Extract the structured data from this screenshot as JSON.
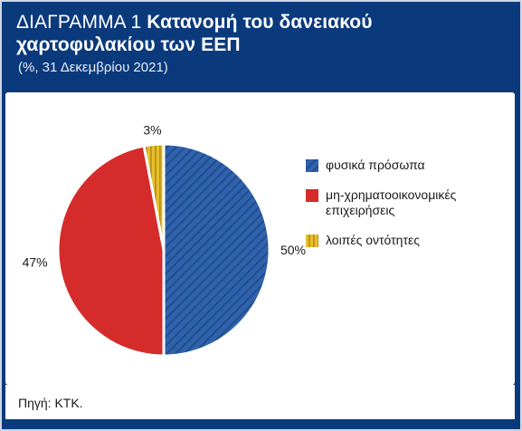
{
  "header": {
    "title_label": "ΔΙΑΓΡΑΜΜΑ 1",
    "title_text": "Κατανομή του δανειακού χαρτοφυλακίου των ΕΕΠ",
    "subtitle": "(%, 31 Δεκεμβρίου 2021)"
  },
  "footer": {
    "source": "Πηγή: ΚΤΚ."
  },
  "colors": {
    "background": "#0b3a7c",
    "households": "#2f63ad",
    "non_financial": "#d52b2b",
    "other": "#e7bf2a"
  },
  "chart_data": {
    "type": "pie",
    "slices": [
      {
        "label": "φυσικά πρόσωπα",
        "value": 50,
        "display": "50%",
        "color": "#2f63ad",
        "pattern": "diagonal-stripes"
      },
      {
        "label": "μη-χρηματοοικονομικές επιχειρήσεις",
        "value": 47,
        "display": "47%",
        "color": "#d52b2b",
        "pattern": "solid"
      },
      {
        "label": "λοιπές οντότητες",
        "value": 3,
        "display": "3%",
        "color": "#e7bf2a",
        "pattern": "vertical-stripes"
      }
    ],
    "legend": [
      {
        "label_lines": [
          "φυσικά πρόσωπα"
        ],
        "icon": "diagonal-stripe-swatch"
      },
      {
        "label_lines": [
          "μη-χρηματοοικονομικές",
          "επιχειρήσεις"
        ],
        "icon": "solid-swatch"
      },
      {
        "label_lines": [
          "λοιπές οντότητες"
        ],
        "icon": "vertical-stripe-swatch"
      }
    ],
    "legend_position": "right",
    "start_angle": "12 o'clock",
    "direction": "clockwise"
  }
}
